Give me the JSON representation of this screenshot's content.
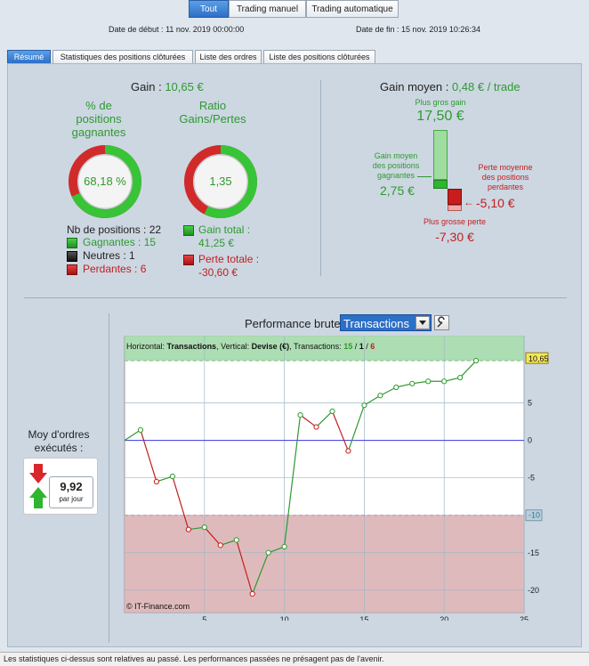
{
  "top_tabs": [
    {
      "label": "Tout",
      "active": true
    },
    {
      "label": "Trading manuel",
      "active": false
    },
    {
      "label": "Trading automatique",
      "active": false
    }
  ],
  "dates": {
    "start_label": "Date de début :",
    "start_value": "11 nov. 2019 00:00:00",
    "end_label": "Date de fin :",
    "end_value": "15 nov. 2019 10:26:34"
  },
  "tabs": [
    {
      "label": "Résumé",
      "active": true
    },
    {
      "label": "Statistiques des positions clôturées",
      "active": false
    },
    {
      "label": "Liste des ordres",
      "active": false
    },
    {
      "label": "Liste des positions clôturées",
      "active": false
    }
  ],
  "summary": {
    "gain_label": "Gain :",
    "gain_value": "10,65 €",
    "pct_title_1": "% de",
    "pct_title_2": "positions",
    "pct_title_3": "gagnantes",
    "pct_value": "68,18 %",
    "pct_fraction": 0.6818,
    "ratio_title_1": "Ratio",
    "ratio_title_2": "Gains/Pertes",
    "ratio_value": "1,35",
    "ratio_fraction": 0.574,
    "nb_positions": "Nb de positions : 22",
    "winners": "Gagnantes : 15",
    "neutral": "Neutres : 1",
    "losers": "Perdantes : 6",
    "gain_total_label": "Gain total :",
    "gain_total_value": "41,25 €",
    "perte_totale_label": "Perte totale :",
    "perte_totale_value": "-30,60 €"
  },
  "average": {
    "title": "Gain moyen :",
    "value": "0,48 € / trade",
    "max_gain_label": "Plus gros gain",
    "max_gain_value": "17,50 €",
    "avg_win_label_1": "Gain moyen",
    "avg_win_label_2": "des positions",
    "avg_win_label_3": "gagnantes",
    "avg_win_value": "2,75 €",
    "avg_loss_label_1": "Perte moyenne",
    "avg_loss_label_2": "des positions",
    "avg_loss_label_3": "perdantes",
    "avg_loss_value": "-5,10 €",
    "max_loss_label": "Plus grosse perte",
    "max_loss_value": "-7,30 €"
  },
  "orders": {
    "label_1": "Moy d'ordres",
    "label_2": "exécutés :",
    "value": "9,92",
    "unit": "par jour"
  },
  "perf": {
    "title": "Performance brute",
    "select_value": "Transactions",
    "info_horizontal_label": "Horizontal:",
    "info_horizontal_value": "Transactions",
    "info_vertical_label": ", Vertical:",
    "info_vertical_value": "Devise (€)",
    "info_tx_label": ", Transactions:",
    "info_tx_green": "15",
    "info_tx_sep1": " / ",
    "info_tx_black": "1",
    "info_tx_sep2": " / ",
    "info_tx_red": "6",
    "credit": "© IT-Finance.com",
    "last_value_label": "10,65",
    "threshold_label": "-10"
  },
  "chart_data": {
    "type": "line",
    "x": [
      0,
      1,
      2,
      3,
      4,
      5,
      6,
      7,
      8,
      9,
      10,
      11,
      12,
      13,
      14,
      15,
      16,
      17,
      18,
      19,
      20,
      21,
      22
    ],
    "series": [
      {
        "values": [
          0,
          1.4,
          -5.5,
          -4.8,
          -11.9,
          -11.6,
          -14,
          -13.3,
          -20.5,
          -15,
          -14.2,
          3.4,
          1.8,
          3.9,
          -1.4,
          4.7,
          6,
          7.1,
          7.6,
          7.9,
          7.9,
          8.4,
          10.65
        ]
      }
    ],
    "xlim": [
      0,
      25
    ],
    "ylim": [
      -23,
      14
    ],
    "x_ticks": [
      5,
      10,
      15,
      20,
      25
    ],
    "y_ticks": [
      5,
      0,
      -5,
      -10,
      -15,
      -20
    ],
    "gain_zone_top": 10.65,
    "loss_zone_top": -10,
    "colors": {
      "gain": "#2e9a2e",
      "loss": "#c21e1e",
      "zero_line": "#3a3adf",
      "gain_bg": "#9fd7a4",
      "loss_bg": "#d9aeb2"
    }
  },
  "footer": "Les statistiques ci-dessus sont relatives au passé. Les performances passées ne présagent pas de l'avenir."
}
